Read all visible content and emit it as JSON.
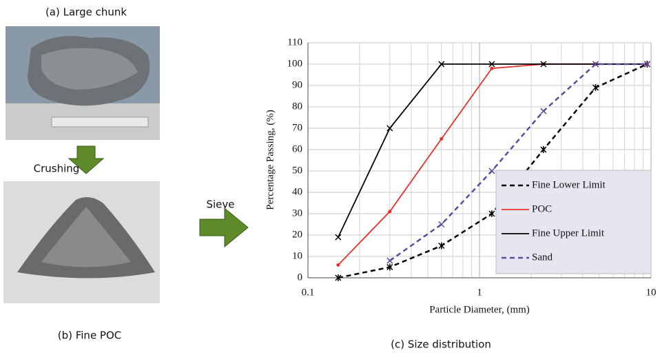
{
  "panel_labels": {
    "a": "(a) Large chunk",
    "crushing": "Crushing",
    "b": "(b) Fine POC",
    "sieve": "Sieve",
    "c": "(c) Size distribution"
  },
  "chart_data": {
    "type": "line",
    "x_label": "Particle Diameter, (mm)",
    "y_label": "Percentage Passing, (%)",
    "x": [
      0.15,
      0.3,
      0.6,
      1.18,
      2.36,
      4.75,
      9.5
    ],
    "xlim": [
      0.1,
      10
    ],
    "xticks": [
      0.1,
      1,
      10
    ],
    "log_x": true,
    "ylim": [
      0,
      110
    ],
    "yticks": [
      0,
      10,
      20,
      30,
      40,
      50,
      60,
      70,
      80,
      90,
      100,
      110
    ],
    "grid": true,
    "minor_grid": true,
    "legend": "lower right",
    "series": [
      {
        "name": "Fine Lower Limit",
        "color": "#000000",
        "dash": true,
        "marker": "star",
        "values": [
          0,
          5,
          15,
          30,
          60,
          89,
          100
        ]
      },
      {
        "name": "POC",
        "color": "#e8302a",
        "dash": false,
        "marker": "dot",
        "values": [
          6,
          31,
          65,
          98,
          100,
          100,
          100
        ]
      },
      {
        "name": "Fine Upper Limit",
        "color": "#000000",
        "dash": false,
        "marker": "cross",
        "values": [
          19,
          70,
          100,
          100,
          100,
          100,
          100
        ]
      },
      {
        "name": "Sand",
        "color": "#5a4aa0",
        "dash": true,
        "marker": "cross",
        "values": [
          null,
          8,
          25,
          50,
          78,
          100,
          100
        ]
      }
    ]
  }
}
